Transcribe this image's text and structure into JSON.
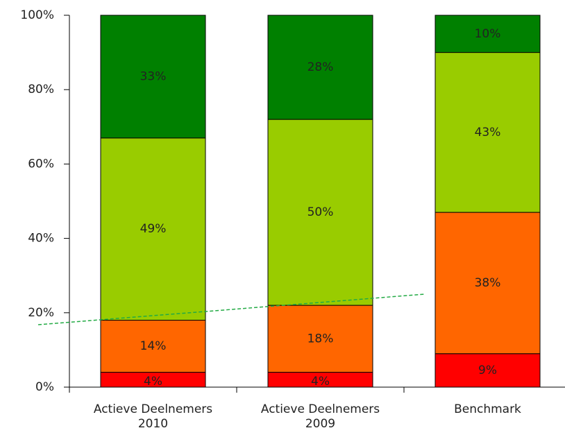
{
  "chart_data": {
    "type": "stacked_bar",
    "categories": [
      "Actieve Deelnemers 2010",
      "Actieve Deelnemers 2009",
      "Benchmark"
    ],
    "series": [
      {
        "color": "#ff0000",
        "values": [
          4,
          4,
          9
        ],
        "value_labels": [
          "4%",
          "4%",
          "9%"
        ]
      },
      {
        "color": "#ff6600",
        "values": [
          14,
          18,
          38
        ],
        "value_labels": [
          "14%",
          "18%",
          "38%"
        ]
      },
      {
        "color": "#99cc00",
        "values": [
          49,
          50,
          43
        ],
        "value_labels": [
          "49%",
          "50%",
          "43%"
        ]
      },
      {
        "color": "#008000",
        "values": [
          33,
          28,
          10
        ],
        "value_labels": [
          "33%",
          "28%",
          "10%"
        ]
      }
    ],
    "ylim": [
      0,
      100
    ],
    "yticks": [
      {
        "value": 0,
        "label": "0%"
      },
      {
        "value": 20,
        "label": "20%"
      },
      {
        "value": 40,
        "label": "40%"
      },
      {
        "value": 60,
        "label": "60%"
      },
      {
        "value": 80,
        "label": "80%"
      },
      {
        "value": 100,
        "label": "100%"
      }
    ]
  }
}
